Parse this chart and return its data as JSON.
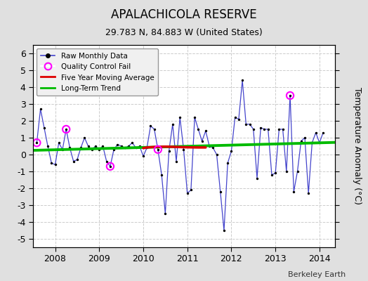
{
  "title": "APALACHICOLA RESERVE",
  "subtitle": "29.783 N, 84.883 W (United States)",
  "ylabel": "Temperature Anomaly (°C)",
  "credit": "Berkeley Earth",
  "background_color": "#e0e0e0",
  "plot_bg_color": "#ffffff",
  "ylim": [
    -5.5,
    6.5
  ],
  "yticks": [
    -5,
    -4,
    -3,
    -2,
    -1,
    0,
    1,
    2,
    3,
    4,
    5,
    6
  ],
  "xlim_start": 2007.5,
  "xlim_end": 2014.35,
  "xticks": [
    2008,
    2009,
    2010,
    2011,
    2012,
    2013,
    2014
  ],
  "raw_x": [
    2007.583,
    2007.667,
    2007.75,
    2007.833,
    2007.917,
    2008.0,
    2008.083,
    2008.167,
    2008.25,
    2008.333,
    2008.417,
    2008.5,
    2008.583,
    2008.667,
    2008.75,
    2008.833,
    2008.917,
    2009.0,
    2009.083,
    2009.167,
    2009.25,
    2009.333,
    2009.417,
    2009.5,
    2009.583,
    2009.667,
    2009.75,
    2009.833,
    2009.917,
    2010.0,
    2010.083,
    2010.167,
    2010.25,
    2010.333,
    2010.417,
    2010.5,
    2010.583,
    2010.667,
    2010.75,
    2010.833,
    2010.917,
    2011.0,
    2011.083,
    2011.167,
    2011.25,
    2011.333,
    2011.417,
    2011.5,
    2011.583,
    2011.667,
    2011.75,
    2011.833,
    2011.917,
    2012.0,
    2012.083,
    2012.167,
    2012.25,
    2012.333,
    2012.417,
    2012.5,
    2012.583,
    2012.667,
    2012.75,
    2012.833,
    2012.917,
    2013.0,
    2013.083,
    2013.167,
    2013.25,
    2013.333,
    2013.417,
    2013.5,
    2013.583,
    2013.667,
    2013.75,
    2013.833,
    2013.917,
    2014.0,
    2014.083
  ],
  "raw_y": [
    0.7,
    2.7,
    1.6,
    0.5,
    -0.5,
    -0.6,
    0.7,
    0.3,
    1.5,
    0.4,
    -0.4,
    -0.3,
    0.4,
    1.0,
    0.5,
    0.3,
    0.5,
    0.3,
    0.5,
    -0.4,
    -0.7,
    0.3,
    0.6,
    0.5,
    0.4,
    0.5,
    0.7,
    0.4,
    0.5,
    -0.1,
    0.4,
    1.7,
    1.5,
    0.3,
    -1.2,
    -3.5,
    0.2,
    1.8,
    -0.4,
    2.2,
    0.3,
    -2.3,
    -2.1,
    2.2,
    1.5,
    0.8,
    1.4,
    0.5,
    0.4,
    0.0,
    -2.2,
    -4.5,
    -0.5,
    0.2,
    2.2,
    2.1,
    4.4,
    1.8,
    1.8,
    1.5,
    -1.4,
    1.6,
    1.5,
    1.5,
    -1.2,
    -1.1,
    1.5,
    1.5,
    -1.0,
    3.5,
    -2.2,
    -1.0,
    0.8,
    1.0,
    -2.3,
    0.7,
    1.3,
    0.7,
    1.3
  ],
  "qc_fail_x": [
    2007.583,
    2008.25,
    2009.25,
    2010.333,
    2013.333
  ],
  "qc_fail_y": [
    0.7,
    1.5,
    -0.7,
    0.3,
    3.5
  ],
  "five_yr_ma_x": [
    2010.0,
    2010.083,
    2010.25,
    2010.5,
    2010.75,
    2011.0,
    2011.25,
    2011.417
  ],
  "five_yr_ma_y": [
    0.38,
    0.42,
    0.45,
    0.47,
    0.45,
    0.43,
    0.42,
    0.42
  ],
  "trend_x": [
    2007.5,
    2014.35
  ],
  "trend_y": [
    0.25,
    0.72
  ],
  "line_color": "#4444cc",
  "dot_color": "#000000",
  "qc_color": "#ff00ff",
  "ma_color": "#dd0000",
  "trend_color": "#00bb00",
  "grid_color": "#cccccc",
  "tick_fontsize": 9,
  "title_fontsize": 12,
  "subtitle_fontsize": 9
}
